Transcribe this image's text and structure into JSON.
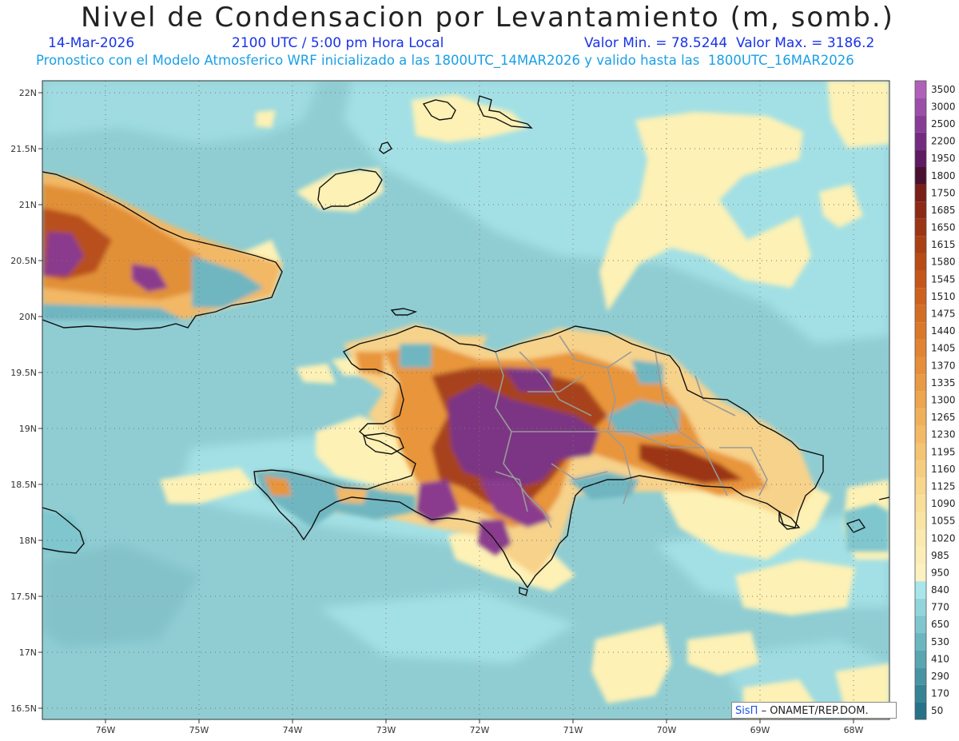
{
  "header": {
    "title": "Nivel de Condensacion por Levantamiento (m, somb.)",
    "date": "14-Mar-2026",
    "time": "2100 UTC / 5:00 pm Hora Local",
    "minmax": "Valor Min. = 78.5244  Valor Max. = 3186.2",
    "forecast": "Pronostico con el Modelo Atmosferico WRF inicializado a las 1800UTC_14MAR2026 y valido hasta las  1800UTC_16MAR2026"
  },
  "axes": {
    "lon_ticks": [
      "76W",
      "75W",
      "74W",
      "73W",
      "72W",
      "71W",
      "70W",
      "69W",
      "68W"
    ],
    "lat_ticks": [
      "22N",
      "21.5N",
      "21N",
      "20.5N",
      "20N",
      "19.5N",
      "19N",
      "18.5N",
      "18N",
      "17.5N",
      "17N",
      "16.5N"
    ]
  },
  "legend": {
    "levels": [
      "3500",
      "3000",
      "2500",
      "2200",
      "1950",
      "1800",
      "1750",
      "1685",
      "1650",
      "1615",
      "1580",
      "1545",
      "1510",
      "1475",
      "1440",
      "1405",
      "1370",
      "1335",
      "1300",
      "1265",
      "1230",
      "1195",
      "1160",
      "1125",
      "1090",
      "1055",
      "1020",
      "985",
      "950",
      "840",
      "770",
      "650",
      "530",
      "410",
      "290",
      "170",
      "50"
    ],
    "colors": [
      "#b060b8",
      "#9c4fa8",
      "#873c96",
      "#732c80",
      "#5e1a63",
      "#4a1030",
      "#7a1e18",
      "#8c2a16",
      "#9c3514",
      "#ab4014",
      "#b84b16",
      "#c4561a",
      "#cd621e",
      "#d46d24",
      "#da782a",
      "#e08432",
      "#e58f3a",
      "#e99a44",
      "#eda54e",
      "#f0b05a",
      "#f2ba66",
      "#f4c473",
      "#f6cd80",
      "#f8d68c",
      "#f9de99",
      "#fae4a4",
      "#fbe9ae",
      "#fcedb7",
      "#fdf1c0",
      "#a8e6ea",
      "#92d6dc",
      "#7fc6ce",
      "#6cb6c0",
      "#5aa5b2",
      "#4894a4",
      "#378396",
      "#277288"
    ]
  },
  "colors": {
    "ocean": "#8fcdd3",
    "ocean_light": "#a6e3e8",
    "yellow": "#fdf2b0",
    "orange": "#e8953a",
    "brown": "#9c3514",
    "purple": "#7a3882",
    "coast": "#111111",
    "province": "#9a9a9a"
  },
  "credit": {
    "sis": "SisΠ",
    "org": "– ONAMET/REP.DOM."
  }
}
